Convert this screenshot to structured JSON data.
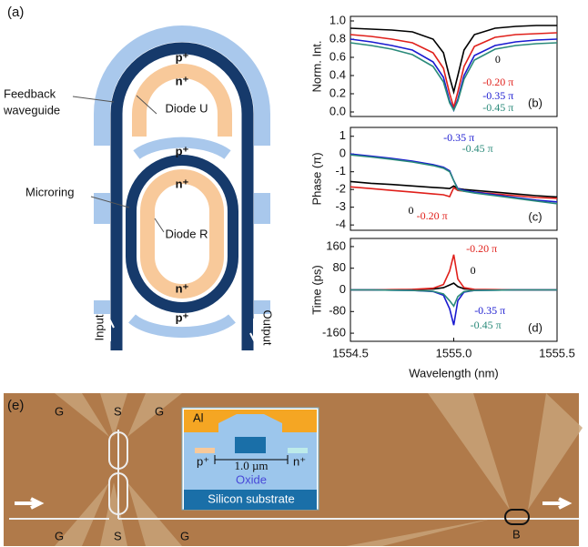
{
  "panel_a": {
    "label": "(a)",
    "p_plus": "p⁺",
    "n_plus": "n⁺",
    "feedback_label": [
      "Feedback",
      "waveguide"
    ],
    "diode_u": "Diode U",
    "diode_r": "Diode R",
    "microring": "Microring",
    "input": "Input",
    "output": "Output"
  },
  "chart_data": [
    {
      "type": "line",
      "label": "(b)",
      "y_label": "Norm. Int.",
      "x": [
        1554.5,
        1554.6,
        1554.7,
        1554.8,
        1554.9,
        1554.95,
        1554.98,
        1555.0,
        1555.02,
        1555.05,
        1555.1,
        1555.2,
        1555.3,
        1555.4,
        1555.5
      ],
      "xlim": [
        1554.5,
        1555.5
      ],
      "ylim": [
        -0.05,
        1.05
      ],
      "yticks": [
        {
          "value": 0,
          "label": "0.0"
        },
        {
          "value": 0.2,
          "label": "0.2"
        },
        {
          "value": 0.4,
          "label": "0.4"
        },
        {
          "value": 0.6,
          "label": "0.6"
        },
        {
          "value": 0.8,
          "label": "0.8"
        },
        {
          "value": 1,
          "label": "1.0"
        }
      ],
      "series": [
        {
          "name": "0",
          "color": "#000000",
          "values": [
            0.92,
            0.91,
            0.9,
            0.88,
            0.8,
            0.65,
            0.38,
            0.22,
            0.4,
            0.68,
            0.85,
            0.92,
            0.94,
            0.95,
            0.95
          ]
        },
        {
          "name": "-0.20 π",
          "color": "#e0201b",
          "values": [
            0.85,
            0.83,
            0.8,
            0.76,
            0.65,
            0.48,
            0.2,
            0.05,
            0.22,
            0.5,
            0.72,
            0.82,
            0.85,
            0.86,
            0.87
          ]
        },
        {
          "name": "-0.35 π",
          "color": "#1a1ad0",
          "values": [
            0.8,
            0.77,
            0.73,
            0.68,
            0.55,
            0.38,
            0.12,
            0.02,
            0.14,
            0.4,
            0.62,
            0.73,
            0.77,
            0.79,
            0.8
          ]
        },
        {
          "name": "-0.45 π",
          "color": "#2a8a7a",
          "values": [
            0.76,
            0.73,
            0.69,
            0.63,
            0.5,
            0.33,
            0.1,
            0.02,
            0.12,
            0.36,
            0.57,
            0.69,
            0.73,
            0.75,
            0.76
          ]
        }
      ]
    },
    {
      "type": "line",
      "label": "(c)",
      "y_label": "Phase (π)",
      "x": [
        1554.5,
        1554.6,
        1554.7,
        1554.8,
        1554.9,
        1554.95,
        1554.98,
        1555.0,
        1555.02,
        1555.05,
        1555.1,
        1555.2,
        1555.3,
        1555.4,
        1555.5
      ],
      "xlim": [
        1554.5,
        1555.5
      ],
      "ylim": [
        -4.3,
        1.5
      ],
      "yticks": [
        1,
        0,
        -1,
        -2,
        -3,
        -4
      ],
      "series": [
        {
          "name": "0",
          "color": "#000000",
          "values": [
            -1.55,
            -1.65,
            -1.72,
            -1.8,
            -1.88,
            -1.92,
            -1.95,
            -1.8,
            -1.95,
            -2.0,
            -2.05,
            -2.15,
            -2.25,
            -2.35,
            -2.42
          ]
        },
        {
          "name": "-0.20 π",
          "color": "#e0201b",
          "values": [
            -1.85,
            -1.95,
            -2.05,
            -2.15,
            -2.25,
            -2.3,
            -2.4,
            -1.9,
            -2.05,
            -2.1,
            -2.15,
            -2.25,
            -2.35,
            -2.45,
            -2.5
          ]
        },
        {
          "name": "-0.35 π",
          "color": "#1a1ad0",
          "values": [
            0.0,
            -0.12,
            -0.25,
            -0.4,
            -0.6,
            -0.75,
            -0.95,
            -1.5,
            -1.95,
            -2.05,
            -2.15,
            -2.3,
            -2.45,
            -2.6,
            -2.7
          ]
        },
        {
          "name": "-0.45 π",
          "color": "#2a8a7a",
          "values": [
            -0.05,
            -0.17,
            -0.3,
            -0.45,
            -0.65,
            -0.8,
            -1.0,
            -1.5,
            -2.0,
            -2.1,
            -2.2,
            -2.35,
            -2.5,
            -2.65,
            -2.8
          ]
        }
      ]
    },
    {
      "type": "line",
      "label": "(d)",
      "y_label": "Time (ps)",
      "x_label": "Wavelength (nm)",
      "x": [
        1554.5,
        1554.6,
        1554.7,
        1554.8,
        1554.9,
        1554.95,
        1554.98,
        1555.0,
        1555.02,
        1555.05,
        1555.1,
        1555.2,
        1555.3,
        1555.4,
        1555.5
      ],
      "xlim": [
        1554.5,
        1555.5
      ],
      "ylim": [
        -190,
        190
      ],
      "xticks": [
        1554.5,
        {
          "value": 1555,
          "label": "1555.0"
        },
        1555.5
      ],
      "yticks": [
        160,
        80,
        0,
        -80,
        -160
      ],
      "series": [
        {
          "name": "0",
          "color": "#000000",
          "values": [
            0,
            0,
            0,
            1,
            3,
            8,
            18,
            25,
            12,
            4,
            1,
            0,
            0,
            0,
            0
          ]
        },
        {
          "name": "-0.20 π",
          "color": "#e0201b",
          "values": [
            0,
            0,
            1,
            2,
            6,
            20,
            70,
            130,
            40,
            8,
            2,
            1,
            0,
            0,
            0
          ]
        },
        {
          "name": "-0.35 π",
          "color": "#1a1ad0",
          "values": [
            0,
            0,
            -1,
            -2,
            -6,
            -20,
            -70,
            -130,
            -40,
            -8,
            -2,
            -1,
            0,
            0,
            0
          ]
        },
        {
          "name": "-0.45 π",
          "color": "#2a8a7a",
          "values": [
            0,
            0,
            -1,
            -2,
            -5,
            -15,
            -40,
            -60,
            -25,
            -6,
            -2,
            -1,
            0,
            0,
            0
          ]
        }
      ]
    }
  ],
  "panel_e": {
    "label": "(e)",
    "pads_top": [
      "G",
      "S",
      "G"
    ],
    "pads_bottom": [
      "G",
      "S",
      "G"
    ],
    "metal": "Al",
    "scale": "1.0 µm",
    "p_plus": "p⁺",
    "n_plus": "n⁺",
    "oxide": "Oxide",
    "substrate": "Silicon substrate",
    "ring_b": "B"
  }
}
